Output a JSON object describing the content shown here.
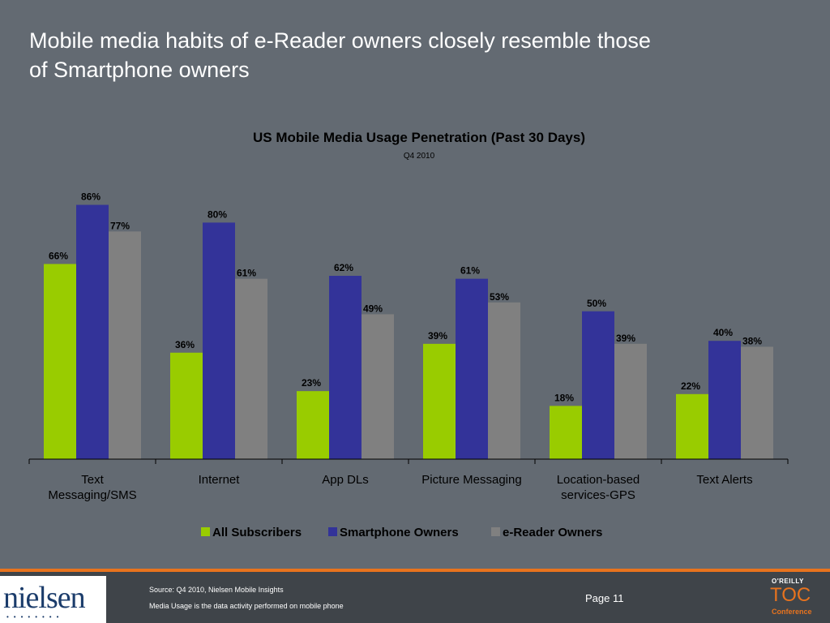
{
  "slide": {
    "title_line1": "Mobile media habits of e-Reader owners closely resemble those",
    "title_line2": "of Smartphone owners"
  },
  "chart_data": {
    "type": "bar",
    "title": "US Mobile Media Usage Penetration (Past 30 Days)",
    "subtitle": "Q4 2010",
    "categories": [
      [
        "Text",
        "Messaging/SMS"
      ],
      [
        "Internet"
      ],
      [
        "App DLs"
      ],
      [
        "Picture Messaging"
      ],
      [
        "Location-based",
        "services-GPS"
      ],
      [
        "Text Alerts"
      ]
    ],
    "series": [
      {
        "name": "All Subscribers",
        "color": "#99cc00",
        "values": [
          66,
          36,
          23,
          39,
          18,
          22
        ]
      },
      {
        "name": "Smartphone Owners",
        "color": "#333399",
        "values": [
          86,
          80,
          62,
          61,
          50,
          40
        ]
      },
      {
        "name": "e-Reader Owners",
        "color": "#808080",
        "values": [
          77,
          61,
          49,
          53,
          39,
          38
        ]
      }
    ],
    "value_suffix": "%",
    "ylim": [
      0,
      100
    ],
    "grid": false,
    "legend_position": "bottom"
  },
  "footer": {
    "source": "Source: Q4 2010, Nielsen Mobile Insights",
    "note": "Media Usage is the data activity performed on mobile phone",
    "page": "Page 11",
    "logo_text": "nielsen",
    "oreilly": "O'REILLY",
    "toc": "TOC",
    "conference": "Conference"
  }
}
